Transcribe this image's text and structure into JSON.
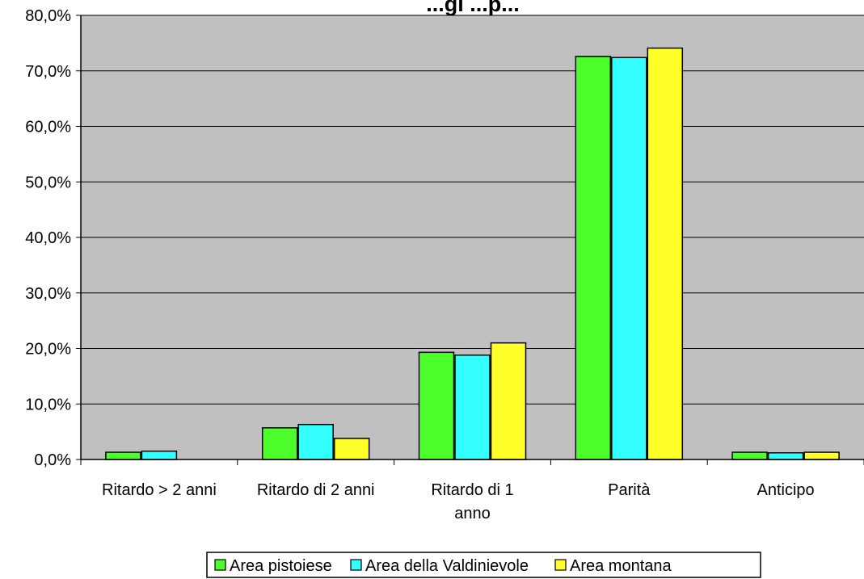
{
  "chart_data": {
    "type": "bar",
    "title": "...gi ...p...",
    "categories": [
      [
        "Ritardo > 2 anni"
      ],
      [
        "Ritardo di 2 anni"
      ],
      [
        "Ritardo di 1",
        "anno"
      ],
      [
        "Parità"
      ],
      [
        "Anticipo"
      ]
    ],
    "series": [
      {
        "name": "Area pistoiese",
        "color": "#4CFF2A",
        "values": [
          1.3,
          5.7,
          19.3,
          72.6,
          1.3
        ]
      },
      {
        "name": "Area della Valdinievole",
        "color": "#33FFFF",
        "values": [
          1.5,
          6.3,
          18.8,
          72.4,
          1.2
        ]
      },
      {
        "name": "Area montana",
        "color": "#FFFF2A",
        "values": [
          0.0,
          3.8,
          21.0,
          74.1,
          1.3
        ]
      }
    ],
    "ylim": [
      0,
      80
    ],
    "yticks": [
      "0,0%",
      "10,0%",
      "20,0%",
      "30,0%",
      "40,0%",
      "50,0%",
      "60,0%",
      "70,0%",
      "80,0%"
    ],
    "plot_background": "#C0C0C0",
    "grid": true,
    "legend_position": "bottom"
  }
}
